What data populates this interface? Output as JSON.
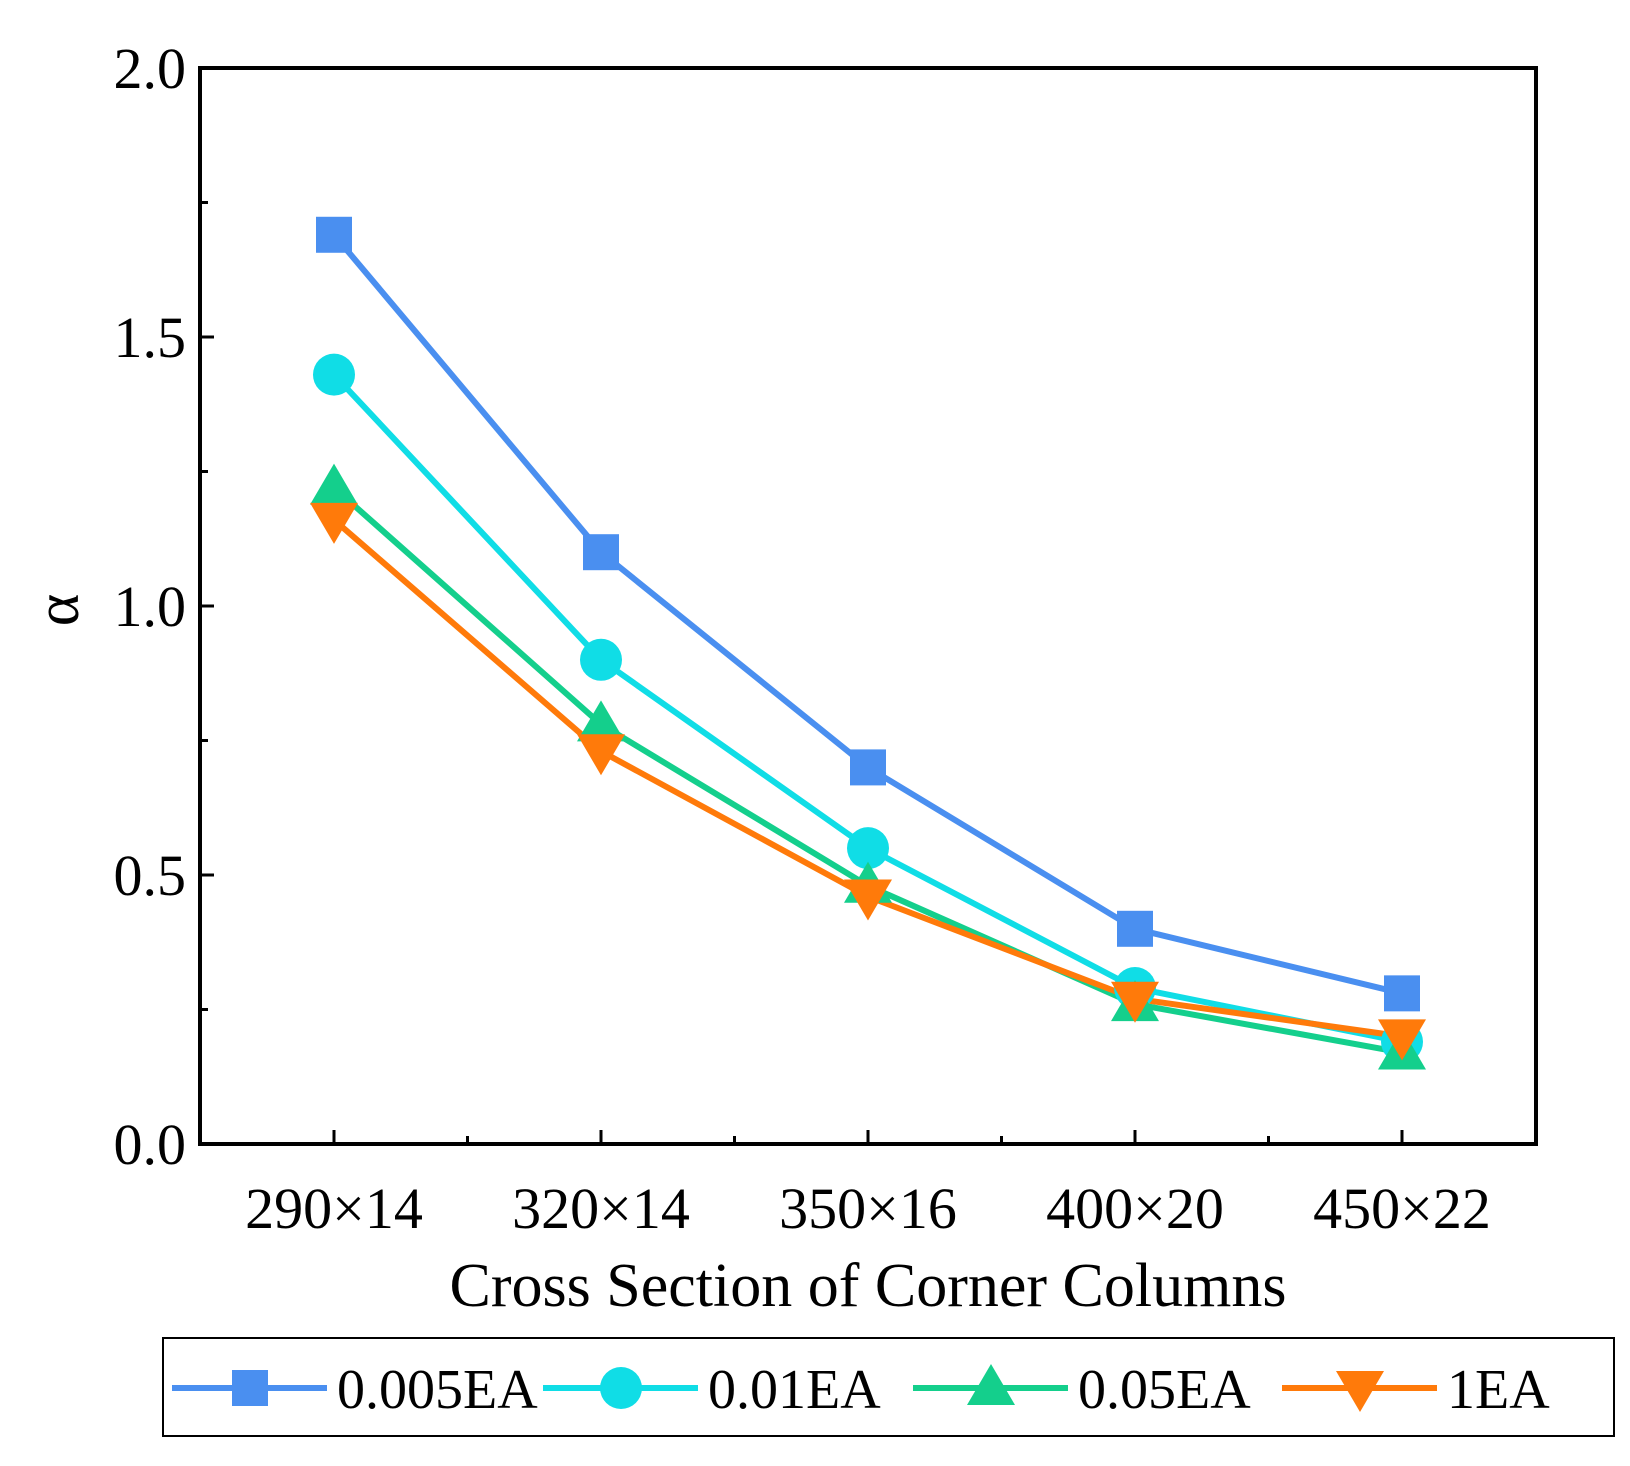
{
  "chart_data": {
    "type": "line",
    "title": "",
    "xlabel": "Cross Section of Corner Columns",
    "ylabel": "α",
    "categories": [
      "290×14",
      "320×14",
      "350×16",
      "400×20",
      "450×22"
    ],
    "ylim": [
      0.0,
      2.0
    ],
    "yticks": [
      0.0,
      0.5,
      1.0,
      1.5,
      2.0
    ],
    "ytick_labels": [
      "0.0",
      "0.5",
      "1.0",
      "1.5",
      "2.0"
    ],
    "grid": false,
    "legend_position": "bottom",
    "series": [
      {
        "name": "0.005EA",
        "marker": "square",
        "color": "#4a8ff0",
        "values": [
          1.69,
          1.1,
          0.7,
          0.4,
          0.28
        ]
      },
      {
        "name": "0.01EA",
        "marker": "circle",
        "color": "#10dde6",
        "values": [
          1.43,
          0.9,
          0.55,
          0.29,
          0.19
        ]
      },
      {
        "name": "0.05EA",
        "marker": "triangle-up",
        "color": "#14cf8c",
        "values": [
          1.22,
          0.78,
          0.48,
          0.26,
          0.17
        ]
      },
      {
        "name": "1EA",
        "marker": "triangle-down",
        "color": "#ff7a0a",
        "values": [
          1.16,
          0.73,
          0.46,
          0.27,
          0.2
        ]
      }
    ]
  }
}
